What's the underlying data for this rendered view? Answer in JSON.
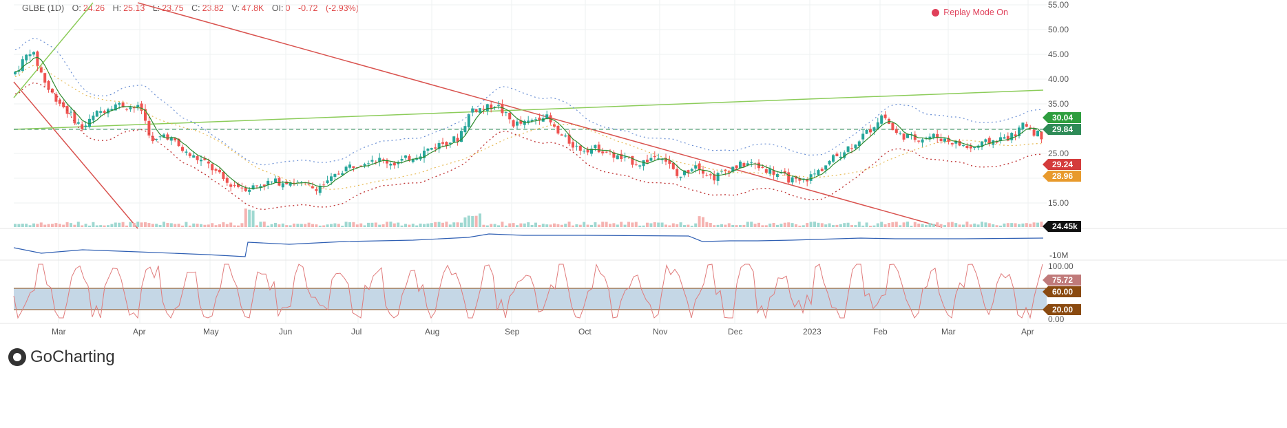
{
  "legend": {
    "symbol": "GLBE (1D)",
    "o_label": "O:",
    "o": "24.26",
    "h_label": "H:",
    "h": "25.13",
    "l_label": "L:",
    "l": "23.75",
    "c_label": "C:",
    "c": "23.82",
    "v_label": "V:",
    "v": "47.8K",
    "oi_label": "OI:",
    "oi": "0",
    "chg": "-0.72",
    "chg_pct": "(-2.93%)"
  },
  "replay": {
    "label": "Replay Mode On",
    "icon": "record-dot-icon"
  },
  "brand": {
    "name": "GoCharting",
    "icon": "gocharting-logo-icon"
  },
  "colors": {
    "up": "#26a69a",
    "down": "#ef5350",
    "trend_red": "#d9534f",
    "trend_green": "#8ccc5a",
    "sma": "#2e8b2e",
    "obv": "#2f5fb3",
    "rsi": "#e07b7b",
    "rsi_band": "#c5d7e6"
  },
  "price_axis": [
    "55.00",
    "50.00",
    "45.00",
    "40.00",
    "35.00",
    "30.00",
    "25.00",
    "20.00",
    "15.00"
  ],
  "price_badges": [
    {
      "value": "30.04",
      "color": "#2e9e3e"
    },
    {
      "value": "29.84",
      "color": "#2e8b57"
    },
    {
      "value": "29.24",
      "color": "#d43c3c"
    },
    {
      "value": "28.96",
      "color": "#e89a2c"
    }
  ],
  "volume_badge": "24.45k",
  "obv_axis": [
    "-10M"
  ],
  "rsi_axis": [
    "100.00",
    "0.00"
  ],
  "rsi_badges": [
    {
      "value": "75.72",
      "color": "#c07a7a"
    },
    {
      "value": "60.00",
      "color": "#8a4a10"
    },
    {
      "value": "20.00",
      "color": "#8a4a10"
    }
  ],
  "x_labels": [
    "Mar",
    "Apr",
    "May",
    "Jun",
    "Jul",
    "Aug",
    "Sep",
    "Oct",
    "Nov",
    "Dec",
    "2023",
    "Feb",
    "Mar",
    "Apr"
  ],
  "chart_data": {
    "type": "candlestick",
    "symbol": "GLBE",
    "interval": "1D",
    "ylim": [
      13,
      55
    ],
    "ohlc_approx": [
      {
        "t": "Feb",
        "o": 41,
        "h": 43,
        "l": 38,
        "c": 39
      },
      {
        "t": "Feb",
        "o": 39,
        "h": 48,
        "l": 37,
        "c": 46
      },
      {
        "t": "Mar",
        "o": 40,
        "h": 41,
        "l": 36,
        "c": 37
      },
      {
        "t": "Mar",
        "o": 35,
        "h": 37,
        "l": 29,
        "c": 30
      },
      {
        "t": "Mar",
        "o": 30,
        "h": 32,
        "l": 27,
        "c": 28
      },
      {
        "t": "Mar",
        "o": 29,
        "h": 36,
        "l": 28,
        "c": 34
      },
      {
        "t": "Apr",
        "o": 35,
        "h": 37,
        "l": 33,
        "c": 34
      },
      {
        "t": "Apr",
        "o": 31,
        "h": 32,
        "l": 25,
        "c": 25
      },
      {
        "t": "Apr",
        "o": 30,
        "h": 31,
        "l": 28,
        "c": 29
      },
      {
        "t": "May",
        "o": 26,
        "h": 27,
        "l": 24,
        "c": 24
      },
      {
        "t": "May",
        "o": 22,
        "h": 23,
        "l": 19,
        "c": 20
      },
      {
        "t": "May",
        "o": 16,
        "h": 24,
        "l": 15,
        "c": 22
      },
      {
        "t": "Jun",
        "o": 19,
        "h": 20,
        "l": 18,
        "c": 19
      },
      {
        "t": "Jun",
        "o": 18,
        "h": 19,
        "l": 17,
        "c": 18
      },
      {
        "t": "Jul",
        "o": 21,
        "h": 24,
        "l": 20,
        "c": 23
      },
      {
        "t": "Jul",
        "o": 23,
        "h": 25,
        "l": 22,
        "c": 23
      },
      {
        "t": "Aug",
        "o": 25,
        "h": 28,
        "l": 24,
        "c": 27
      },
      {
        "t": "Aug",
        "o": 30,
        "h": 37,
        "l": 29,
        "c": 35
      },
      {
        "t": "Sep",
        "o": 37,
        "h": 38,
        "l": 32,
        "c": 33
      },
      {
        "t": "Sep",
        "o": 30,
        "h": 35,
        "l": 29,
        "c": 34
      },
      {
        "t": "Oct",
        "o": 30,
        "h": 31,
        "l": 26,
        "c": 27
      },
      {
        "t": "Oct",
        "o": 27,
        "h": 28,
        "l": 24,
        "c": 25
      },
      {
        "t": "Nov",
        "o": 26,
        "h": 27,
        "l": 21,
        "c": 22
      },
      {
        "t": "Nov",
        "o": 22,
        "h": 27,
        "l": 20,
        "c": 25
      },
      {
        "t": "Dec",
        "o": 21,
        "h": 24,
        "l": 20,
        "c": 23
      },
      {
        "t": "Dec",
        "o": 22,
        "h": 23,
        "l": 19,
        "c": 20
      },
      {
        "t": "2023",
        "o": 21,
        "h": 24,
        "l": 20,
        "c": 23
      },
      {
        "t": "2023",
        "o": 25,
        "h": 28,
        "l": 24,
        "c": 27
      },
      {
        "t": "Feb",
        "o": 30,
        "h": 35,
        "l": 29,
        "c": 33
      },
      {
        "t": "Feb",
        "o": 30,
        "h": 32,
        "l": 27,
        "c": 28
      },
      {
        "t": "Mar",
        "o": 30,
        "h": 31,
        "l": 27,
        "c": 28
      },
      {
        "t": "Mar",
        "o": 27,
        "h": 28,
        "l": 25,
        "c": 26
      },
      {
        "t": "Apr",
        "o": 29,
        "h": 31,
        "l": 28,
        "c": 31
      },
      {
        "t": "Apr",
        "o": 24.26,
        "h": 25.13,
        "l": 23.75,
        "c": 23.82
      }
    ],
    "horizontal_line": 29.84,
    "rsi_levels": [
      60,
      20
    ],
    "rsi_last": 75.72
  }
}
